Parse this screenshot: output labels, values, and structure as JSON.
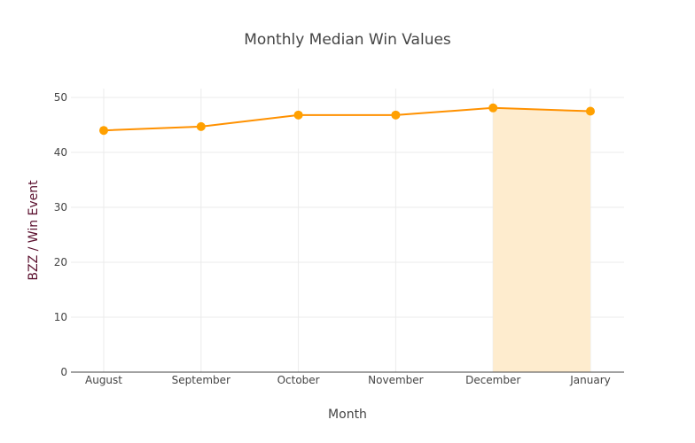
{
  "chart_data": {
    "type": "line",
    "title": "Monthly Median Win Values",
    "xlabel": "Month",
    "ylabel": "BZZ / Win Event",
    "categories": [
      "August",
      "September",
      "October",
      "November",
      "December",
      "January"
    ],
    "series": [
      {
        "values": [
          44.0,
          44.7,
          46.8,
          46.8,
          48.1,
          47.5
        ]
      }
    ],
    "ylim": [
      0,
      52
    ],
    "yticks": [
      0,
      10,
      20,
      30,
      40,
      50
    ],
    "grid": true,
    "highlight_range": [
      "December",
      "January"
    ],
    "colors": {
      "line": "#ff9100",
      "marker": "#ffa000",
      "highlight": "#feecce",
      "ylabel": "#5a0f2d"
    }
  }
}
